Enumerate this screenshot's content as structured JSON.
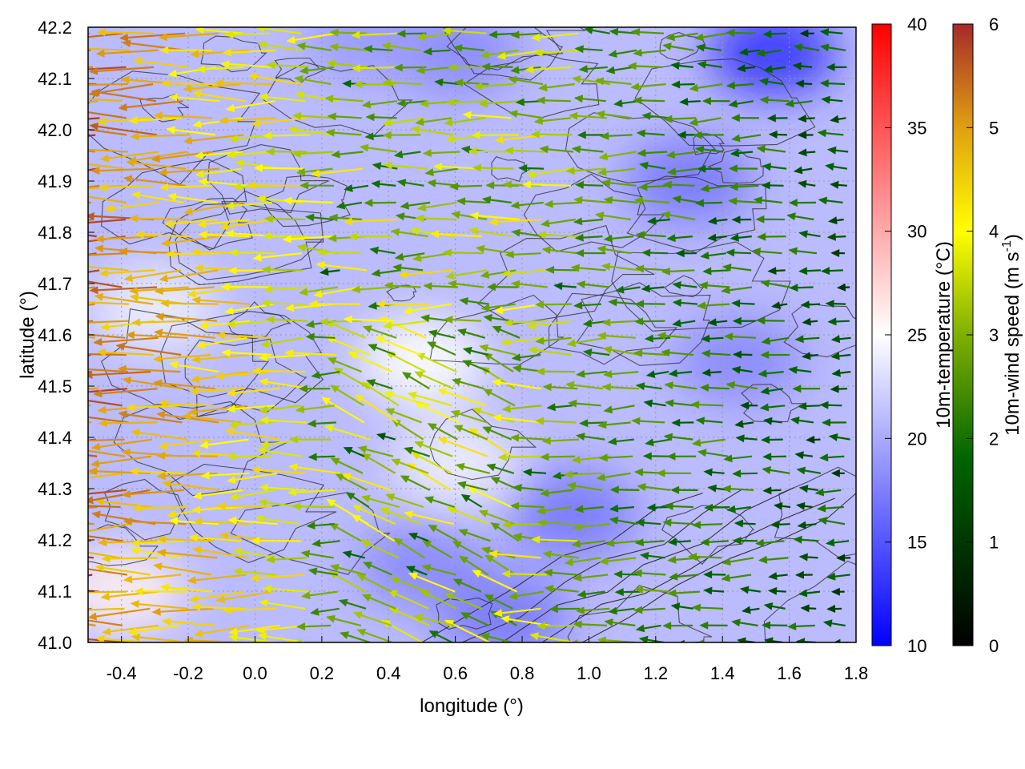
{
  "chart_data": {
    "type": "heatmap",
    "subtype": "temperature field with wind vectors and terrain contours",
    "xlabel": "longitude (°)",
    "ylabel": "latitude (°)",
    "xlim": [
      -0.5,
      1.8
    ],
    "ylim": [
      41.0,
      42.2
    ],
    "x_ticks": [
      "-0.4",
      "-0.2",
      "0.0",
      "0.2",
      "0.4",
      "0.6",
      "0.8",
      "1.0",
      "1.2",
      "1.4",
      "1.6",
      "1.8"
    ],
    "y_ticks": [
      "41.0",
      "41.1",
      "41.2",
      "41.3",
      "41.4",
      "41.5",
      "41.6",
      "41.7",
      "41.8",
      "41.9",
      "42.0",
      "42.1",
      "42.2"
    ],
    "grid": true,
    "colorbars": [
      {
        "label": "10m-temperature (°C)",
        "range": [
          10,
          40
        ],
        "ticks": [
          "10",
          "15",
          "20",
          "25",
          "30",
          "35",
          "40"
        ],
        "colors": [
          "#0000ff",
          "#ffffff",
          "#ff0000"
        ]
      },
      {
        "label": "10m-wind speed (m s-1)",
        "label_base": "10m-wind speed (m s",
        "label_sup": "-1",
        "label_end": ")",
        "range": [
          0,
          6
        ],
        "ticks": [
          "0",
          "1",
          "2",
          "3",
          "4",
          "5",
          "6"
        ],
        "colors": [
          "#000000",
          "#006400",
          "#7fb000",
          "#ffff00",
          "#e0a010",
          "#a52a2a"
        ]
      }
    ],
    "temperature_field": {
      "background_c": 21,
      "cold_regions": [
        {
          "lon": 1.55,
          "lat": 42.15,
          "value_c": 13
        },
        {
          "lon": 1.3,
          "lat": 41.9,
          "value_c": 17
        },
        {
          "lon": 1.45,
          "lat": 41.55,
          "value_c": 18
        },
        {
          "lon": 0.95,
          "lat": 41.25,
          "value_c": 17
        },
        {
          "lon": 0.75,
          "lat": 41.05,
          "value_c": 17
        },
        {
          "lon": 0.5,
          "lat": 41.15,
          "value_c": 18
        },
        {
          "lon": 0.6,
          "lat": 42.15,
          "value_c": 18
        },
        {
          "lon": 0.35,
          "lat": 42.18,
          "value_c": 19
        }
      ],
      "warm_regions": [
        {
          "lon": -0.4,
          "lat": 41.1,
          "value_c": 26
        },
        {
          "lon": 0.5,
          "lat": 41.55,
          "value_c": 25
        },
        {
          "lon": -0.3,
          "lat": 41.65,
          "value_c": 24
        },
        {
          "lon": 0.6,
          "lat": 41.35,
          "value_c": 24
        }
      ]
    },
    "wind_field": {
      "direction": "mostly easterly (vectors pointing west)",
      "strong_west_ms": 5.5,
      "moderate_center_ms": 3,
      "weak_east_ms": 1.5
    }
  }
}
